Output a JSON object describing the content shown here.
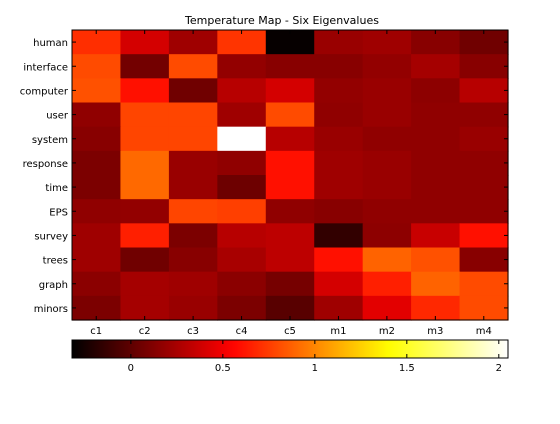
{
  "chart_data": {
    "type": "heatmap",
    "title": "Temperature Map - Six Eigenvalues",
    "rows": [
      "human",
      "interface",
      "computer",
      "user",
      "system",
      "response",
      "time",
      "EPS",
      "survey",
      "trees",
      "graph",
      "minors"
    ],
    "columns": [
      "c1",
      "c2",
      "c3",
      "c4",
      "c5",
      "m1",
      "m2",
      "m3",
      "m4"
    ],
    "values": [
      [
        0.7,
        0.4,
        0.22,
        0.72,
        -0.3,
        0.2,
        0.22,
        0.14,
        0.06
      ],
      [
        0.8,
        0.07,
        0.8,
        0.18,
        0.14,
        0.14,
        0.18,
        0.24,
        0.14
      ],
      [
        0.82,
        0.6,
        0.06,
        0.3,
        0.4,
        0.18,
        0.2,
        0.16,
        0.3
      ],
      [
        0.17,
        0.78,
        0.78,
        0.22,
        0.8,
        0.17,
        0.2,
        0.17,
        0.17
      ],
      [
        0.14,
        0.78,
        0.78,
        2.05,
        0.3,
        0.2,
        0.17,
        0.17,
        0.2
      ],
      [
        0.1,
        0.9,
        0.2,
        0.17,
        0.6,
        0.22,
        0.2,
        0.17,
        0.17
      ],
      [
        0.1,
        0.9,
        0.2,
        0.05,
        0.6,
        0.22,
        0.2,
        0.17,
        0.17
      ],
      [
        0.17,
        0.18,
        0.78,
        0.76,
        0.17,
        0.14,
        0.17,
        0.17,
        0.17
      ],
      [
        0.22,
        0.65,
        0.1,
        0.3,
        0.32,
        -0.15,
        0.16,
        0.36,
        0.6
      ],
      [
        0.22,
        0.06,
        0.14,
        0.25,
        0.32,
        0.6,
        0.88,
        0.82,
        0.14
      ],
      [
        0.15,
        0.24,
        0.22,
        0.15,
        0.08,
        0.4,
        0.65,
        0.88,
        0.8
      ],
      [
        0.1,
        0.24,
        0.2,
        0.1,
        -0.02,
        0.22,
        0.45,
        0.68,
        0.8
      ]
    ],
    "colorbar": {
      "colormap": "hot",
      "range": [
        -0.32,
        2.05
      ],
      "tick_values": [
        0,
        0.5,
        1,
        1.5,
        2
      ],
      "tick_labels": [
        "0",
        "0.5",
        "1",
        "1.5",
        "2"
      ]
    }
  }
}
